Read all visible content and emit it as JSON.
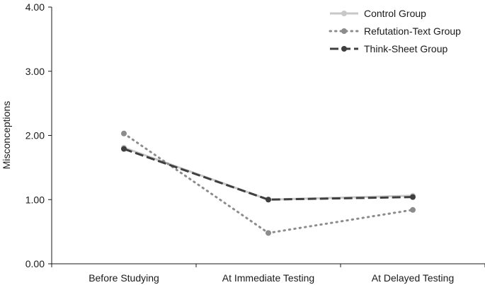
{
  "chart_data": {
    "type": "line",
    "title": "",
    "xlabel": "",
    "ylabel": "Misconceptions",
    "categories": [
      "Before Studying",
      "At Immediate Testing",
      "At Delayed Testing"
    ],
    "ylim": [
      0,
      4
    ],
    "yticks": [
      "0.00",
      "1.00",
      "2.00",
      "3.00",
      "4.00"
    ],
    "grid": false,
    "legend_position": "top-right",
    "series": [
      {
        "name": "Control Group",
        "values": [
          1.81,
          1.0,
          1.06
        ],
        "color": "#c8c8c8",
        "line_style": "solid"
      },
      {
        "name": "Refutation-Text Group",
        "values": [
          2.03,
          0.48,
          0.84
        ],
        "color": "#8c8c8c",
        "line_style": "dotted"
      },
      {
        "name": "Think-Sheet Group",
        "values": [
          1.79,
          1.0,
          1.04
        ],
        "color": "#3f3f3f",
        "line_style": "dashed"
      }
    ]
  }
}
